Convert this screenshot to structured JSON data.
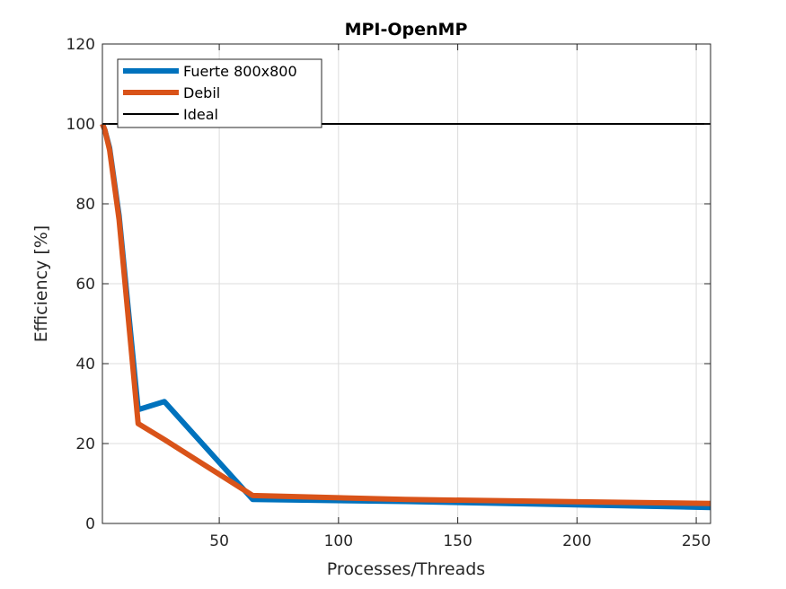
{
  "chart_data": {
    "type": "line",
    "title": "MPI-OpenMP",
    "xlabel": "Processes/Threads",
    "ylabel": "Efficiency [%]",
    "xlim": [
      1,
      256
    ],
    "ylim": [
      0,
      120
    ],
    "xticks": [
      50,
      100,
      150,
      200,
      250
    ],
    "yticks": [
      0,
      20,
      40,
      60,
      80,
      100,
      120
    ],
    "grid": true,
    "legend_position": "top-left",
    "series": [
      {
        "name": "Fuerte 800x800",
        "color": "#0072BD",
        "x": [
          1,
          2,
          4,
          8,
          16,
          27,
          64,
          128,
          256
        ],
        "y": [
          100,
          98.5,
          94,
          77,
          28.5,
          30.5,
          6,
          5.5,
          4
        ]
      },
      {
        "name": "Debil",
        "color": "#D95319",
        "x": [
          1,
          2,
          4,
          8,
          16,
          27,
          64,
          128,
          256
        ],
        "y": [
          100,
          98.5,
          93.5,
          76,
          25,
          21,
          7,
          6,
          5
        ]
      },
      {
        "name": "Ideal",
        "color": "#000000",
        "x": [
          1,
          256
        ],
        "y": [
          100,
          100
        ]
      }
    ]
  }
}
